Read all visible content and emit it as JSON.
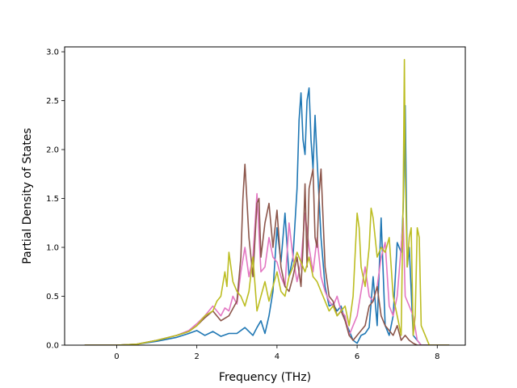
{
  "chart_data": {
    "type": "line",
    "title": "",
    "xlabel": "Frequency (THz)",
    "ylabel": "Partial Density of States",
    "xlim": [
      -1.3,
      8.7
    ],
    "ylim": [
      0,
      3.05
    ],
    "xticks": [
      0,
      2,
      4,
      6,
      8
    ],
    "yticks": [
      0.0,
      0.5,
      1.0,
      1.5,
      2.0,
      2.5,
      3.0
    ],
    "xtick_labels": [
      "0",
      "2",
      "4",
      "6",
      "8"
    ],
    "ytick_labels": [
      "0.0",
      "0.5",
      "1.0",
      "1.5",
      "2.0",
      "2.5",
      "3.0"
    ],
    "grid": false,
    "legend": "none",
    "series": [
      {
        "color": "#1f77b4",
        "x": [
          -0.8,
          0.0,
          0.5,
          1.0,
          1.5,
          1.8,
          2.0,
          2.2,
          2.4,
          2.6,
          2.8,
          3.0,
          3.2,
          3.4,
          3.5,
          3.6,
          3.7,
          3.8,
          3.9,
          4.0,
          4.1,
          4.2,
          4.3,
          4.4,
          4.5,
          4.55,
          4.6,
          4.65,
          4.7,
          4.75,
          4.8,
          4.85,
          4.9,
          4.95,
          5.0,
          5.1,
          5.2,
          5.3,
          5.4,
          5.5,
          5.6,
          5.7,
          5.8,
          5.9,
          6.0,
          6.1,
          6.2,
          6.3,
          6.4,
          6.5,
          6.6,
          6.7,
          6.8,
          6.9,
          7.0,
          7.1,
          7.15,
          7.2,
          7.25,
          7.3,
          7.4,
          7.5,
          7.6,
          7.8,
          8.3
        ],
        "y": [
          0.0,
          0.0,
          0.01,
          0.04,
          0.08,
          0.12,
          0.15,
          0.1,
          0.14,
          0.09,
          0.12,
          0.12,
          0.18,
          0.1,
          0.18,
          0.25,
          0.12,
          0.3,
          0.55,
          1.2,
          0.85,
          1.35,
          0.7,
          0.9,
          1.6,
          2.3,
          2.58,
          2.1,
          1.95,
          2.5,
          2.63,
          2.1,
          1.8,
          2.35,
          1.9,
          1.1,
          0.6,
          0.4,
          0.42,
          0.35,
          0.4,
          0.25,
          0.15,
          0.05,
          0.02,
          0.1,
          0.12,
          0.18,
          0.7,
          0.2,
          1.3,
          0.2,
          0.1,
          0.3,
          1.05,
          0.95,
          1.4,
          2.45,
          0.8,
          1.0,
          0.1,
          0.05,
          0.0,
          0.0,
          0.0
        ]
      },
      {
        "color": "#e377c2",
        "x": [
          -0.8,
          0.0,
          0.5,
          1.0,
          1.5,
          1.8,
          2.0,
          2.2,
          2.4,
          2.6,
          2.7,
          2.8,
          2.9,
          3.0,
          3.1,
          3.2,
          3.3,
          3.4,
          3.5,
          3.6,
          3.7,
          3.8,
          3.9,
          4.0,
          4.1,
          4.2,
          4.3,
          4.4,
          4.5,
          4.6,
          4.7,
          4.8,
          4.9,
          5.0,
          5.1,
          5.2,
          5.3,
          5.4,
          5.5,
          5.6,
          5.7,
          5.8,
          5.9,
          6.0,
          6.1,
          6.2,
          6.3,
          6.4,
          6.5,
          6.6,
          6.7,
          6.8,
          6.9,
          7.0,
          7.1,
          7.15,
          7.2,
          7.3,
          7.4,
          7.5,
          7.6,
          7.8,
          8.3
        ],
        "y": [
          0.0,
          0.0,
          0.01,
          0.05,
          0.1,
          0.15,
          0.22,
          0.3,
          0.4,
          0.3,
          0.38,
          0.35,
          0.5,
          0.42,
          0.75,
          1.0,
          0.7,
          0.9,
          1.55,
          0.75,
          0.8,
          1.1,
          0.9,
          0.85,
          0.7,
          0.6,
          1.25,
          0.9,
          0.65,
          0.85,
          1.35,
          1.0,
          0.75,
          1.1,
          0.7,
          0.55,
          0.45,
          0.4,
          0.5,
          0.35,
          0.3,
          0.1,
          0.2,
          0.3,
          0.55,
          0.8,
          0.5,
          0.45,
          0.6,
          0.9,
          1.05,
          0.4,
          0.3,
          0.5,
          1.0,
          1.3,
          0.5,
          0.4,
          0.3,
          0.05,
          0.0,
          0.0,
          0.0
        ]
      },
      {
        "color": "#8c564b",
        "x": [
          -0.8,
          0.0,
          0.5,
          1.0,
          1.5,
          1.8,
          2.0,
          2.2,
          2.4,
          2.6,
          2.8,
          3.0,
          3.1,
          3.15,
          3.2,
          3.3,
          3.4,
          3.5,
          3.55,
          3.6,
          3.7,
          3.8,
          3.9,
          4.0,
          4.1,
          4.2,
          4.3,
          4.4,
          4.5,
          4.6,
          4.65,
          4.7,
          4.75,
          4.8,
          4.85,
          4.9,
          4.95,
          5.0,
          5.05,
          5.1,
          5.2,
          5.3,
          5.4,
          5.5,
          5.6,
          5.7,
          5.8,
          5.9,
          6.0,
          6.1,
          6.2,
          6.3,
          6.4,
          6.5,
          6.6,
          6.7,
          6.8,
          6.9,
          7.0,
          7.1,
          7.2,
          7.3,
          7.4,
          7.5,
          7.6,
          7.8,
          8.3
        ],
        "y": [
          0.0,
          0.0,
          0.01,
          0.05,
          0.1,
          0.14,
          0.2,
          0.28,
          0.35,
          0.25,
          0.3,
          0.45,
          0.9,
          1.5,
          1.85,
          1.1,
          0.7,
          1.45,
          1.5,
          0.9,
          1.25,
          1.45,
          1.0,
          1.38,
          0.8,
          0.6,
          0.55,
          0.7,
          0.9,
          0.6,
          1.0,
          1.65,
          0.8,
          1.6,
          1.7,
          1.8,
          1.1,
          1.0,
          1.55,
          1.8,
          0.8,
          0.5,
          0.45,
          0.3,
          0.35,
          0.25,
          0.1,
          0.05,
          0.1,
          0.15,
          0.2,
          0.4,
          0.45,
          0.6,
          0.3,
          0.2,
          0.15,
          0.1,
          0.2,
          0.05,
          0.1,
          0.05,
          0.02,
          0.0,
          0.0,
          0.0,
          0.0
        ]
      },
      {
        "color": "#bcbd22",
        "x": [
          -0.8,
          0.0,
          0.5,
          1.0,
          1.5,
          1.8,
          2.0,
          2.2,
          2.4,
          2.5,
          2.6,
          2.7,
          2.75,
          2.8,
          2.9,
          3.0,
          3.1,
          3.2,
          3.3,
          3.4,
          3.5,
          3.6,
          3.7,
          3.8,
          3.9,
          4.0,
          4.1,
          4.2,
          4.3,
          4.4,
          4.5,
          4.6,
          4.7,
          4.8,
          4.9,
          5.0,
          5.1,
          5.2,
          5.3,
          5.4,
          5.5,
          5.6,
          5.7,
          5.8,
          5.9,
          6.0,
          6.05,
          6.1,
          6.2,
          6.3,
          6.35,
          6.4,
          6.5,
          6.6,
          6.7,
          6.8,
          6.9,
          7.0,
          7.05,
          7.1,
          7.15,
          7.18,
          7.2,
          7.25,
          7.3,
          7.35,
          7.4,
          7.45,
          7.5,
          7.55,
          7.6,
          7.8,
          8.3
        ],
        "y": [
          0.0,
          0.0,
          0.01,
          0.05,
          0.1,
          0.14,
          0.2,
          0.3,
          0.35,
          0.45,
          0.5,
          0.75,
          0.6,
          0.95,
          0.65,
          0.55,
          0.5,
          0.4,
          0.55,
          0.9,
          0.35,
          0.5,
          0.65,
          0.45,
          0.6,
          0.75,
          0.55,
          0.5,
          0.7,
          0.8,
          0.95,
          0.85,
          0.75,
          0.9,
          0.7,
          0.65,
          0.55,
          0.45,
          0.35,
          0.4,
          0.3,
          0.35,
          0.4,
          0.2,
          0.5,
          1.35,
          1.2,
          0.8,
          0.6,
          1.0,
          1.4,
          1.3,
          0.9,
          1.0,
          0.95,
          1.1,
          0.5,
          0.3,
          0.2,
          0.1,
          1.5,
          2.92,
          1.8,
          0.8,
          1.1,
          1.2,
          0.1,
          0.3,
          1.2,
          1.1,
          0.2,
          0.0,
          0.0
        ]
      }
    ]
  }
}
